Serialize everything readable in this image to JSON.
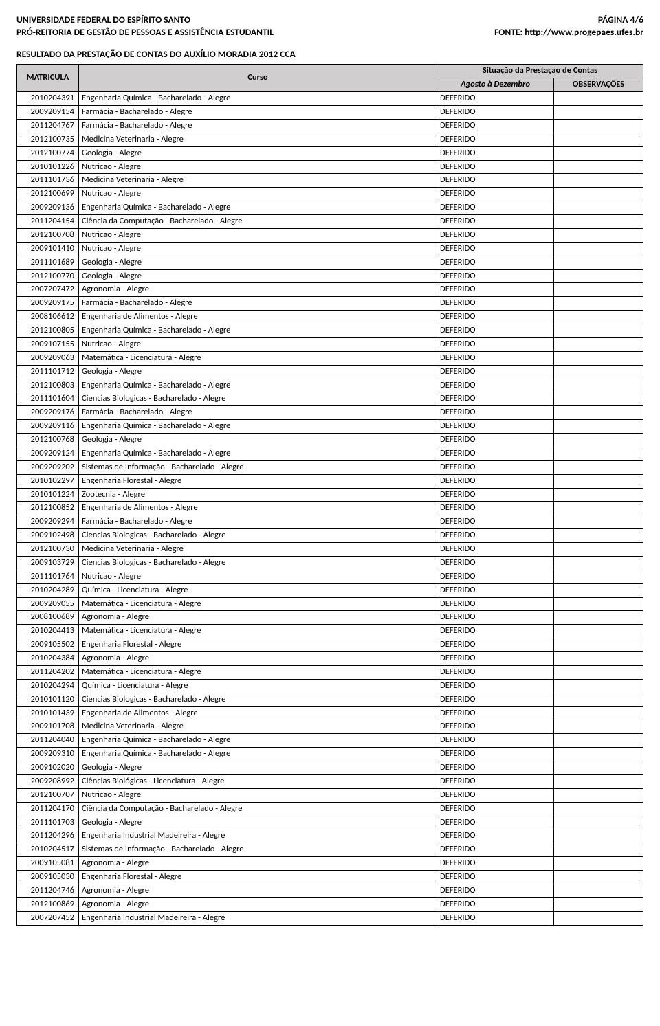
{
  "header": {
    "left_line1": "UNIVERSIDADE FEDERAL DO ESPÍRITO SANTO",
    "left_line2": "PRÓ-REITORIA DE GESTÃO DE PESSOAS E ASSISTÊNCIA ESTUDANTIL",
    "right_line1": "PÁGINA 4/6",
    "right_line2": "FONTE: http://www.progepaes.ufes.br"
  },
  "result_title": "RESULTADO DA PRESTAÇÃO DE CONTAS DO AUXÍLIO MORADIA 2012 CCA",
  "table": {
    "head": {
      "matricula": "MATRICULA",
      "curso": "Curso",
      "situacao_group": "Situação da Prestaçao de Contas",
      "agosto_dez": "Agosto à Dezembro",
      "obs": "OBSERVAÇÕES"
    },
    "rows": [
      {
        "m": "2010204391",
        "c": "Engenharia Química - Bacharelado - Alegre",
        "s": "DEFERIDO",
        "o": ""
      },
      {
        "m": "2009209154",
        "c": "Farmácia - Bacharelado - Alegre",
        "s": "DEFERIDO",
        "o": ""
      },
      {
        "m": "2011204767",
        "c": "Farmácia - Bacharelado - Alegre",
        "s": "DEFERIDO",
        "o": ""
      },
      {
        "m": "2012100735",
        "c": "Medicina Veterinaria - Alegre",
        "s": "DEFERIDO",
        "o": ""
      },
      {
        "m": "2012100774",
        "c": "Geologia - Alegre",
        "s": "DEFERIDO",
        "o": ""
      },
      {
        "m": "2010101226",
        "c": "Nutricao - Alegre",
        "s": "DEFERIDO",
        "o": ""
      },
      {
        "m": "2011101736",
        "c": "Medicina Veterinaria - Alegre",
        "s": "DEFERIDO",
        "o": ""
      },
      {
        "m": "2012100699",
        "c": "Nutricao - Alegre",
        "s": "DEFERIDO",
        "o": ""
      },
      {
        "m": "2009209136",
        "c": "Engenharia Química - Bacharelado - Alegre",
        "s": "DEFERIDO",
        "o": ""
      },
      {
        "m": "2011204154",
        "c": "Ciência da Computação - Bacharelado - Alegre",
        "s": "DEFERIDO",
        "o": ""
      },
      {
        "m": "2012100708",
        "c": "Nutricao - Alegre",
        "s": "DEFERIDO",
        "o": ""
      },
      {
        "m": "2009101410",
        "c": "Nutricao - Alegre",
        "s": "DEFERIDO",
        "o": ""
      },
      {
        "m": "2011101689",
        "c": "Geologia - Alegre",
        "s": "DEFERIDO",
        "o": ""
      },
      {
        "m": "2012100770",
        "c": "Geologia - Alegre",
        "s": "DEFERIDO",
        "o": ""
      },
      {
        "m": "2007207472",
        "c": "Agronomia - Alegre",
        "s": "DEFERIDO",
        "o": ""
      },
      {
        "m": "2009209175",
        "c": "Farmácia - Bacharelado - Alegre",
        "s": "DEFERIDO",
        "o": ""
      },
      {
        "m": "2008106612",
        "c": "Engenharia de Alimentos - Alegre",
        "s": "DEFERIDO",
        "o": ""
      },
      {
        "m": "2012100805",
        "c": "Engenharia Química - Bacharelado - Alegre",
        "s": "DEFERIDO",
        "o": ""
      },
      {
        "m": "2009107155",
        "c": "Nutricao - Alegre",
        "s": "DEFERIDO",
        "o": ""
      },
      {
        "m": "2009209063",
        "c": "Matemática - Licenciatura - Alegre",
        "s": "DEFERIDO",
        "o": ""
      },
      {
        "m": "2011101712",
        "c": "Geologia - Alegre",
        "s": "DEFERIDO",
        "o": ""
      },
      {
        "m": "2012100803",
        "c": "Engenharia Química - Bacharelado - Alegre",
        "s": "DEFERIDO",
        "o": ""
      },
      {
        "m": "2011101604",
        "c": "Ciencias Biologicas - Bacharelado - Alegre",
        "s": "DEFERIDO",
        "o": ""
      },
      {
        "m": "2009209176",
        "c": "Farmácia - Bacharelado - Alegre",
        "s": "DEFERIDO",
        "o": ""
      },
      {
        "m": "2009209116",
        "c": "Engenharia Química - Bacharelado - Alegre",
        "s": "DEFERIDO",
        "o": ""
      },
      {
        "m": "2012100768",
        "c": "Geologia - Alegre",
        "s": "DEFERIDO",
        "o": ""
      },
      {
        "m": "2009209124",
        "c": "Engenharia Química - Bacharelado - Alegre",
        "s": "DEFERIDO",
        "o": ""
      },
      {
        "m": "2009209202",
        "c": "Sistemas de Informação - Bacharelado - Alegre",
        "s": "DEFERIDO",
        "o": ""
      },
      {
        "m": "2010102297",
        "c": "Engenharia Florestal - Alegre",
        "s": "DEFERIDO",
        "o": ""
      },
      {
        "m": "2010101224",
        "c": "Zootecnia - Alegre",
        "s": "DEFERIDO",
        "o": ""
      },
      {
        "m": "2012100852",
        "c": "Engenharia de Alimentos - Alegre",
        "s": "DEFERIDO",
        "o": ""
      },
      {
        "m": "2009209294",
        "c": "Farmácia - Bacharelado - Alegre",
        "s": "DEFERIDO",
        "o": ""
      },
      {
        "m": "2009102498",
        "c": "Ciencias Biologicas - Bacharelado - Alegre",
        "s": "DEFERIDO",
        "o": ""
      },
      {
        "m": "2012100730",
        "c": "Medicina Veterinaria - Alegre",
        "s": "DEFERIDO",
        "o": ""
      },
      {
        "m": "2009103729",
        "c": "Ciencias Biologicas - Bacharelado - Alegre",
        "s": "DEFERIDO",
        "o": ""
      },
      {
        "m": "2011101764",
        "c": "Nutricao - Alegre",
        "s": "DEFERIDO",
        "o": ""
      },
      {
        "m": "2010204289",
        "c": "Química - Licenciatura - Alegre",
        "s": "DEFERIDO",
        "o": ""
      },
      {
        "m": "2009209055",
        "c": "Matemática - Licenciatura - Alegre",
        "s": "DEFERIDO",
        "o": ""
      },
      {
        "m": "2008100689",
        "c": "Agronomia - Alegre",
        "s": "DEFERIDO",
        "o": ""
      },
      {
        "m": "2010204413",
        "c": "Matemática - Licenciatura - Alegre",
        "s": "DEFERIDO",
        "o": ""
      },
      {
        "m": "2009105502",
        "c": "Engenharia Florestal - Alegre",
        "s": "DEFERIDO",
        "o": ""
      },
      {
        "m": "2010204384",
        "c": "Agronomia - Alegre",
        "s": "DEFERIDO",
        "o": ""
      },
      {
        "m": "2011204202",
        "c": "Matemática - Licenciatura - Alegre",
        "s": "DEFERIDO",
        "o": ""
      },
      {
        "m": "2010204294",
        "c": "Química - Licenciatura - Alegre",
        "s": "DEFERIDO",
        "o": ""
      },
      {
        "m": "2010101120",
        "c": "Ciencias Biologicas - Bacharelado - Alegre",
        "s": "DEFERIDO",
        "o": ""
      },
      {
        "m": "2010101439",
        "c": "Engenharia de Alimentos - Alegre",
        "s": "DEFERIDO",
        "o": ""
      },
      {
        "m": "2009101708",
        "c": "Medicina Veterinaria - Alegre",
        "s": "DEFERIDO",
        "o": ""
      },
      {
        "m": "2011204040",
        "c": "Engenharia Química - Bacharelado - Alegre",
        "s": "DEFERIDO",
        "o": ""
      },
      {
        "m": "2009209310",
        "c": "Engenharia Química - Bacharelado - Alegre",
        "s": "DEFERIDO",
        "o": ""
      },
      {
        "m": "2009102020",
        "c": "Geologia - Alegre",
        "s": "DEFERIDO",
        "o": ""
      },
      {
        "m": "2009208992",
        "c": "Ciências Biológicas - Licenciatura - Alegre",
        "s": "DEFERIDO",
        "o": ""
      },
      {
        "m": "2012100707",
        "c": "Nutricao - Alegre",
        "s": "DEFERIDO",
        "o": ""
      },
      {
        "m": "2011204170",
        "c": "Ciência da Computação - Bacharelado - Alegre",
        "s": "DEFERIDO",
        "o": ""
      },
      {
        "m": "2011101703",
        "c": "Geologia - Alegre",
        "s": "DEFERIDO",
        "o": ""
      },
      {
        "m": "2011204296",
        "c": "Engenharia Industrial Madeireira - Alegre",
        "s": "DEFERIDO",
        "o": ""
      },
      {
        "m": "2010204517",
        "c": "Sistemas de Informação - Bacharelado - Alegre",
        "s": "DEFERIDO",
        "o": ""
      },
      {
        "m": "2009105081",
        "c": "Agronomia - Alegre",
        "s": "DEFERIDO",
        "o": ""
      },
      {
        "m": "2009105030",
        "c": "Engenharia Florestal - Alegre",
        "s": "DEFERIDO",
        "o": ""
      },
      {
        "m": "2011204746",
        "c": "Agronomia - Alegre",
        "s": "DEFERIDO",
        "o": ""
      },
      {
        "m": "2012100869",
        "c": "Agronomia - Alegre",
        "s": "DEFERIDO",
        "o": ""
      },
      {
        "m": "2007207452",
        "c": "Engenharia Industrial Madeireira - Alegre",
        "s": "DEFERIDO",
        "o": ""
      }
    ]
  }
}
